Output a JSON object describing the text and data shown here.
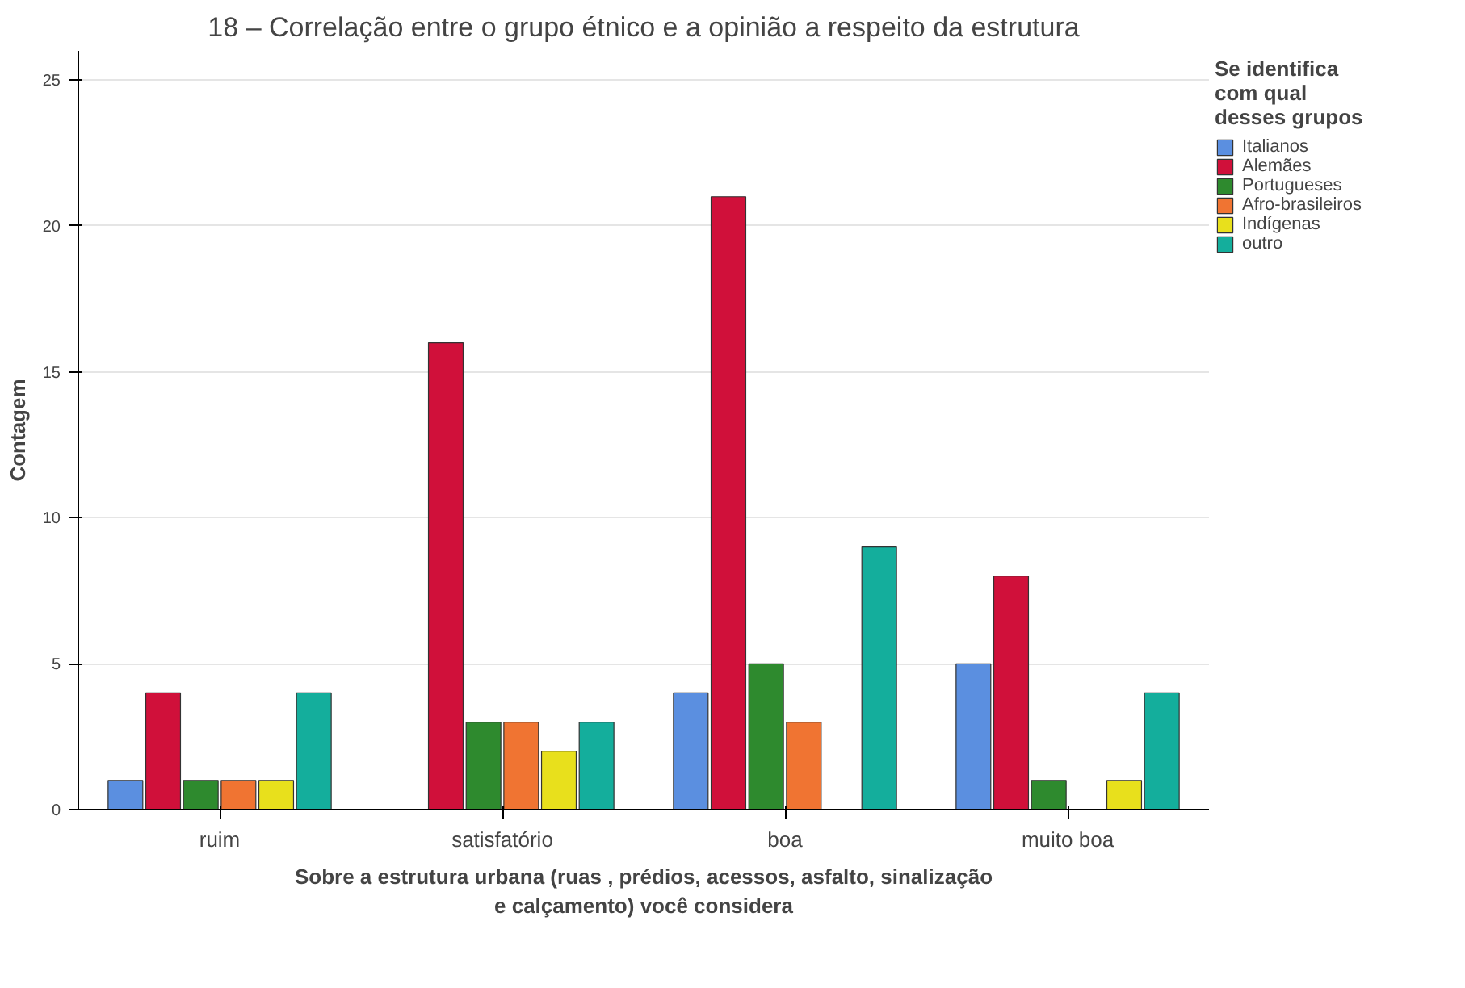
{
  "chart_data": {
    "type": "bar",
    "title": "18 – Correlação entre o grupo étnico e a opinião a respeito da estrutura",
    "xlabel": "Sobre a estrutura urbana (ruas , prédios, acessos, asfalto, sinalização e calçamento) você considera",
    "ylabel": "Contagem",
    "legend_title": "Se identifica com qual desses grupos",
    "categories": [
      "ruim",
      "satisfatório",
      "boa",
      "muito boa"
    ],
    "series": [
      {
        "name": "Italianos",
        "color": "#5b8fe0",
        "values": [
          1,
          0,
          4,
          5
        ]
      },
      {
        "name": "Alemães",
        "color": "#d0103a",
        "values": [
          4,
          16,
          21,
          8
        ]
      },
      {
        "name": "Portugueses",
        "color": "#2e8a2e",
        "values": [
          1,
          3,
          5,
          1
        ]
      },
      {
        "name": "Afro-brasileiros",
        "color": "#f07432",
        "values": [
          1,
          3,
          3,
          0
        ]
      },
      {
        "name": "Indígenas",
        "color": "#e8e01c",
        "values": [
          1,
          2,
          0,
          1
        ]
      },
      {
        "name": "outro",
        "color": "#14ae9c",
        "values": [
          4,
          3,
          9,
          4
        ]
      }
    ],
    "ylim": [
      0,
      26
    ],
    "yticks": [
      0,
      5,
      10,
      15,
      20,
      25
    ],
    "grid": "y",
    "legend": "right"
  }
}
